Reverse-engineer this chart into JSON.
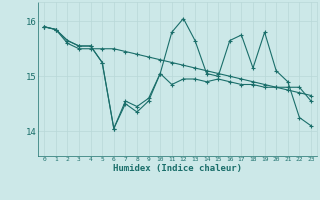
{
  "xlabel": "Humidex (Indice chaleur)",
  "bg_color": "#cce8e8",
  "line_color": "#1a6e6a",
  "grid_color": "#b8d8d8",
  "xlim": [
    -0.5,
    23.5
  ],
  "ylim": [
    13.55,
    16.35
  ],
  "yticks": [
    14,
    15,
    16
  ],
  "xticks": [
    0,
    1,
    2,
    3,
    4,
    5,
    6,
    7,
    8,
    9,
    10,
    11,
    12,
    13,
    14,
    15,
    16,
    17,
    18,
    19,
    20,
    21,
    22,
    23
  ],
  "line1_y": [
    15.9,
    15.85,
    15.65,
    15.55,
    15.55,
    15.25,
    14.05,
    14.55,
    14.45,
    14.6,
    15.05,
    14.85,
    14.95,
    14.95,
    14.9,
    14.95,
    14.9,
    14.85,
    14.85,
    14.8,
    14.8,
    14.8,
    14.8,
    14.55
  ],
  "line2_y": [
    15.9,
    15.85,
    15.65,
    15.55,
    15.55,
    15.25,
    14.05,
    14.5,
    14.35,
    14.55,
    15.05,
    15.8,
    16.05,
    15.65,
    15.05,
    15.0,
    15.65,
    15.75,
    15.15,
    15.8,
    15.1,
    14.9,
    14.25,
    14.1
  ],
  "line3_y": [
    15.9,
    15.85,
    15.6,
    15.5,
    15.5,
    15.5,
    15.5,
    15.45,
    15.4,
    15.35,
    15.3,
    15.25,
    15.2,
    15.15,
    15.1,
    15.05,
    15.0,
    14.95,
    14.9,
    14.85,
    14.8,
    14.75,
    14.7,
    14.65
  ]
}
